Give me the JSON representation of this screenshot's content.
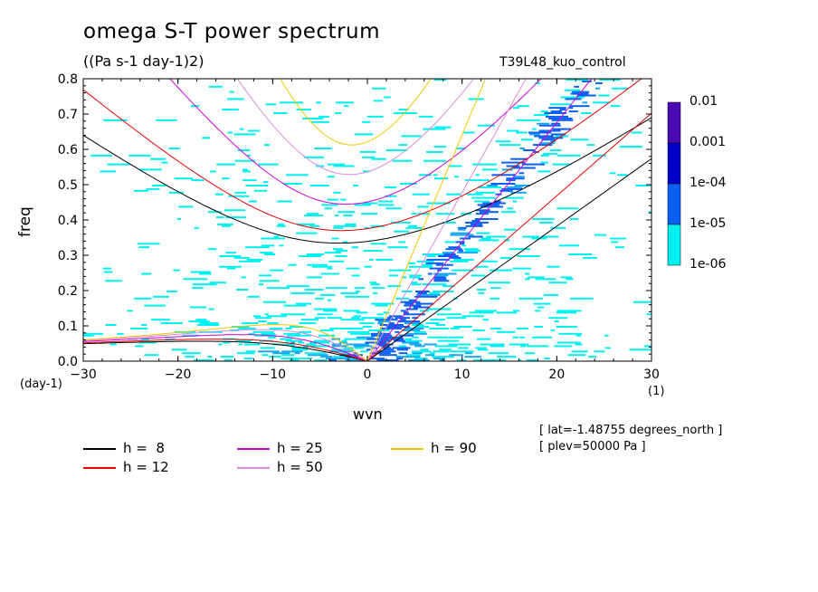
{
  "header": {
    "title": "omega S-T power spectrum",
    "units": "((Pa s-1 day-1)2)",
    "run": "T39L48_kuo_control"
  },
  "info": {
    "lat": "[ lat=-1.48755 degrees_north ]",
    "plev": "[ plev=50000 Pa ]"
  },
  "colorbar": {
    "labels": [
      "0.01",
      "0.001",
      "1e-04",
      "1e-05",
      "1e-06"
    ],
    "colors": [
      "#4b0ab4",
      "#0000c8",
      "#0a5ff0",
      "#00f0f0"
    ]
  },
  "legend": [
    {
      "label": "h =  8",
      "color": "#000000"
    },
    {
      "label": "h = 12",
      "color": "#e60000"
    },
    {
      "label": "h = 25",
      "color": "#d200d2"
    },
    {
      "label": "h = 50",
      "color": "#dc8cdc"
    },
    {
      "label": "h = 90",
      "color": "#f0c800"
    }
  ],
  "chart_data": {
    "type": "heatmap",
    "title": "omega S-T power spectrum",
    "xlabel": "wvn",
    "ylabel": "freq",
    "x_units": "(1)",
    "y_units": "(day-1)",
    "xlim": [
      -30,
      30
    ],
    "ylim": [
      0,
      0.8
    ],
    "x_ticks": [
      -30,
      -20,
      -10,
      0,
      10,
      20,
      30
    ],
    "y_ticks": [
      0.0,
      0.1,
      0.2,
      0.3,
      0.4,
      0.5,
      0.6,
      0.7,
      0.8
    ],
    "y_tick_labels": [
      "0.0",
      "0.1",
      "0.2",
      "0.3",
      "0.4",
      "0.5",
      "0.6",
      "0.7",
      "0.8"
    ],
    "color_levels": [
      1e-06,
      1e-05,
      0.0001,
      0.001,
      0.01
    ],
    "dispersion_curves": [
      {
        "name": "h =  8",
        "equivalent_depth_m": 8
      },
      {
        "name": "h = 12",
        "equivalent_depth_m": 12
      },
      {
        "name": "h = 25",
        "equivalent_depth_m": 25
      },
      {
        "name": "h = 50",
        "equivalent_depth_m": 50
      },
      {
        "name": "h = 90",
        "equivalent_depth_m": 90
      }
    ]
  }
}
